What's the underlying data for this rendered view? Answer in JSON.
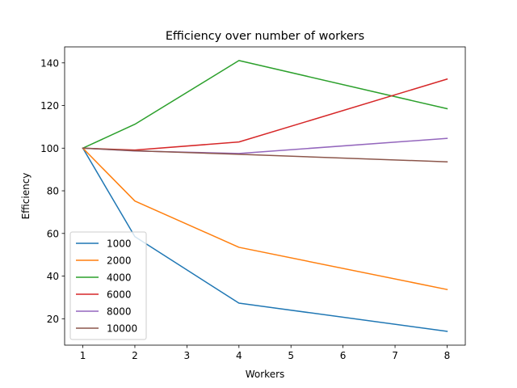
{
  "chart_data": {
    "type": "line",
    "title": "Efficiency over number of workers",
    "xlabel": "Workers",
    "ylabel": "Efficiency",
    "x": [
      1,
      2,
      4,
      8
    ],
    "xticks": [
      1,
      2,
      3,
      4,
      5,
      6,
      7,
      8
    ],
    "yticks": [
      20,
      40,
      60,
      80,
      100,
      120,
      140
    ],
    "xlim": [
      0.65,
      8.35
    ],
    "ylim": [
      7.6,
      147.5
    ],
    "grid": false,
    "legend_position": "lower-left",
    "series": [
      {
        "name": "1000",
        "color": "#1f77b4",
        "values": [
          100,
          58.5,
          27.3,
          14.1
        ]
      },
      {
        "name": "2000",
        "color": "#ff7f0e",
        "values": [
          100,
          75.2,
          53.5,
          33.7
        ]
      },
      {
        "name": "4000",
        "color": "#2ca02c",
        "values": [
          100,
          111.2,
          141.1,
          118.5
        ]
      },
      {
        "name": "6000",
        "color": "#d62728",
        "values": [
          100,
          99.1,
          102.9,
          132.4
        ]
      },
      {
        "name": "8000",
        "color": "#9467bd",
        "values": [
          100,
          98.7,
          97.5,
          104.6
        ]
      },
      {
        "name": "10000",
        "color": "#8c564b",
        "values": [
          100,
          98.8,
          97.1,
          93.6
        ]
      }
    ]
  }
}
